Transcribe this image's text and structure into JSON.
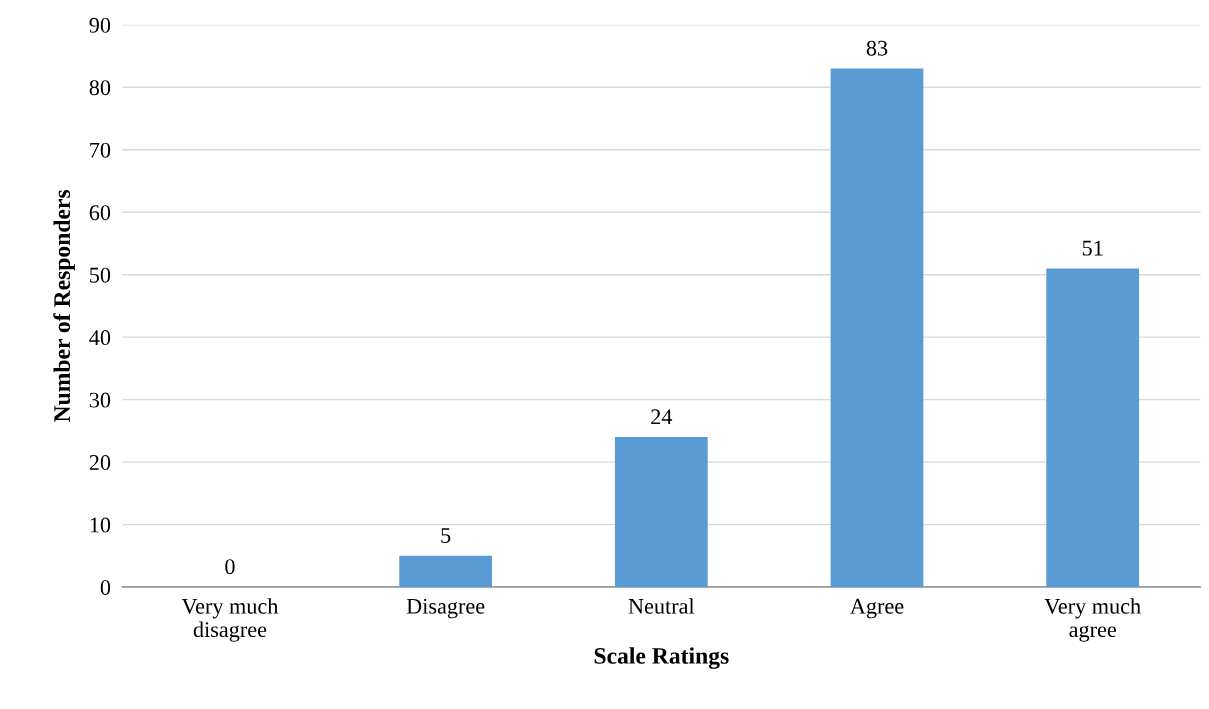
{
  "chart_data": {
    "type": "bar",
    "xlabel": "Scale Ratings",
    "ylabel": "Number of Responders",
    "categories": [
      "Very much\ndisagree",
      "Disagree",
      "Neutral",
      "Agree",
      "Very much\nagree"
    ],
    "values": [
      0,
      5,
      24,
      83,
      51
    ],
    "color": "#5b9bd5",
    "ylim": [
      0,
      90
    ],
    "yticks": [
      0,
      10,
      20,
      30,
      40,
      50,
      60,
      70,
      80,
      90
    ],
    "grid": "y",
    "data_labels": true
  }
}
